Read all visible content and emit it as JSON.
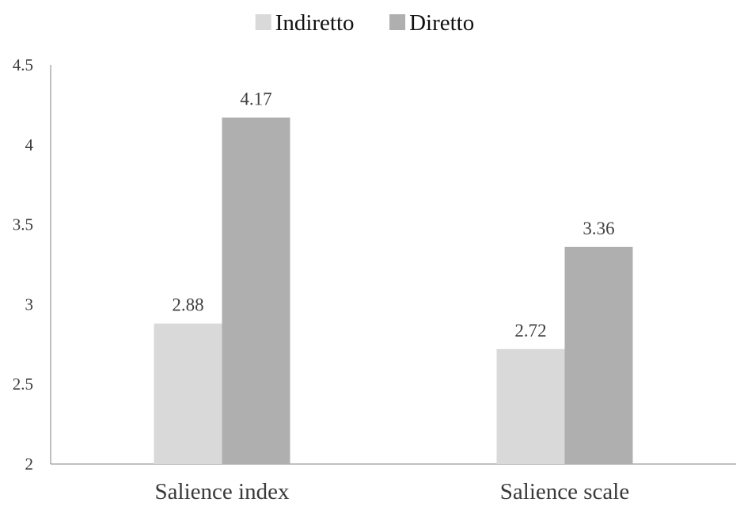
{
  "chart_data": {
    "type": "bar",
    "title": "",
    "xlabel": "",
    "ylabel": "",
    "categories": [
      "Salience index",
      "Salience scale"
    ],
    "series": [
      {
        "name": "Indiretto",
        "values": [
          2.88,
          2.72
        ],
        "labels": [
          "2.88",
          "2.72"
        ],
        "color": "#d9d9d9"
      },
      {
        "name": "Diretto",
        "values": [
          4.17,
          3.36
        ],
        "labels": [
          "4.17",
          "3.36"
        ],
        "color": "#afafaf"
      }
    ],
    "ylim": [
      2,
      4.5
    ],
    "yticks": [
      2,
      2.5,
      3,
      3.5,
      4,
      4.5
    ],
    "ytick_labels": [
      "2",
      "2.5",
      "3",
      "3.5",
      "4",
      "4.5"
    ],
    "grid": false,
    "legend_position": "top-center",
    "axis_color": "#808080"
  }
}
